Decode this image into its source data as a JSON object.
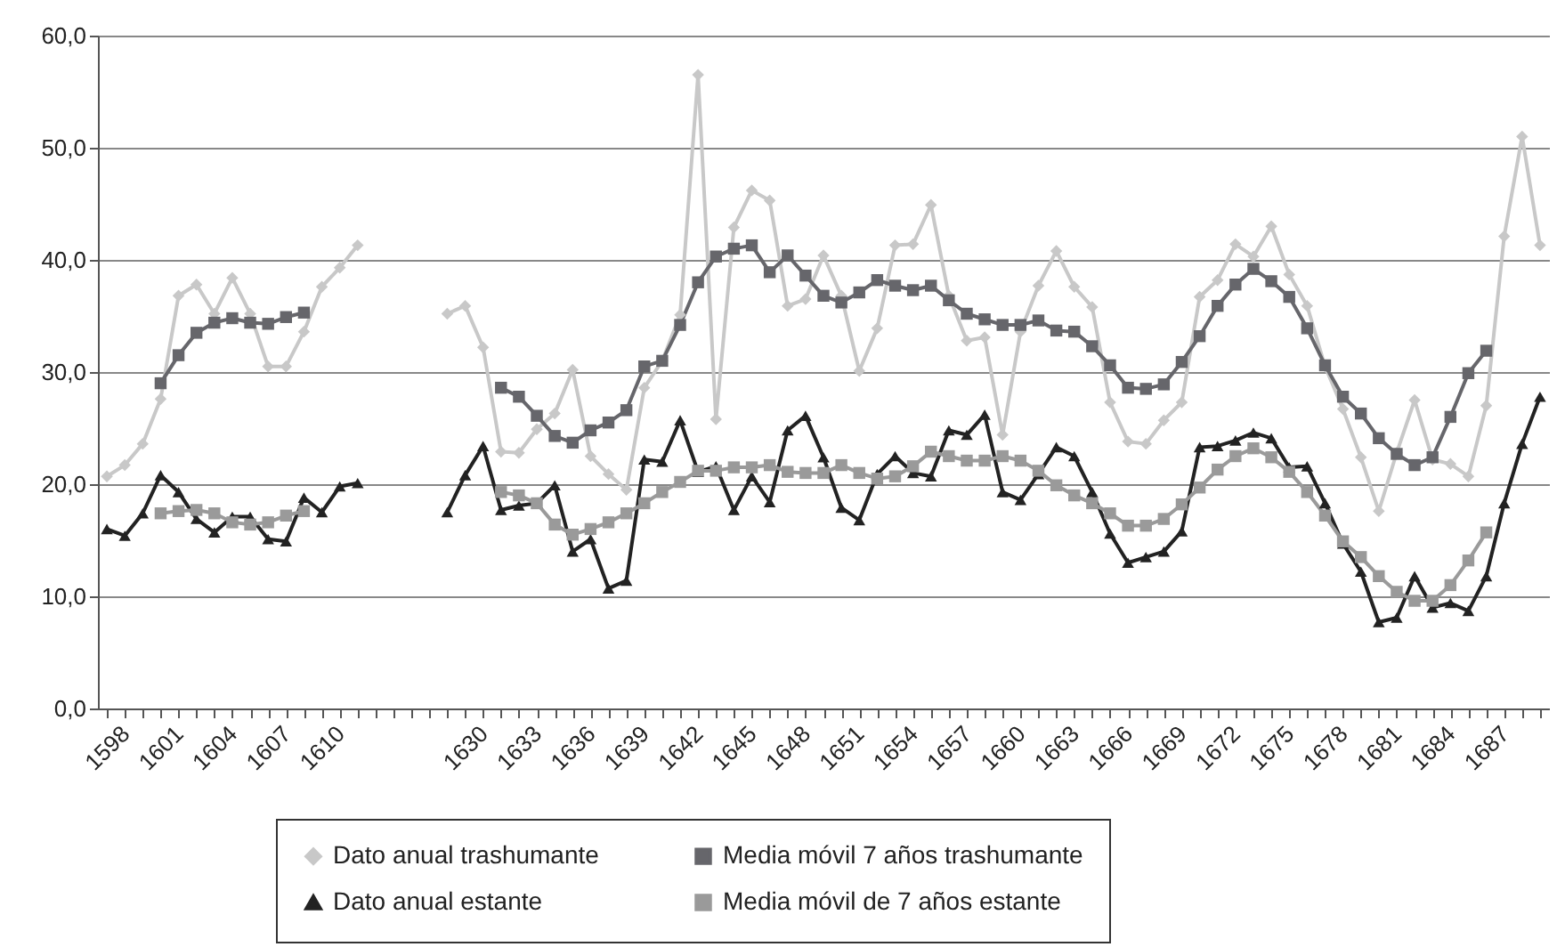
{
  "chart_data": {
    "type": "line",
    "categories": [
      "1598",
      null,
      null,
      "1601",
      null,
      null,
      "1604",
      null,
      null,
      "1607",
      null,
      null,
      "1610",
      null,
      null,
      null,
      null,
      null,
      null,
      null,
      "1630",
      null,
      null,
      "1633",
      null,
      null,
      "1636",
      null,
      null,
      "1639",
      null,
      null,
      "1642",
      null,
      null,
      "1645",
      null,
      null,
      "1648",
      null,
      null,
      "1651",
      null,
      null,
      "1654",
      null,
      null,
      "1657",
      null,
      null,
      "1660",
      null,
      null,
      "1663",
      null,
      null,
      "1666",
      null,
      null,
      "1669",
      null,
      null,
      "1672",
      null,
      null,
      "1675",
      null,
      null,
      "1678",
      null,
      null,
      "1681",
      null,
      null,
      "1684",
      null,
      null,
      "1687",
      null,
      null,
      null
    ],
    "ylim": [
      0,
      60
    ],
    "yticks": [
      {
        "value": 0,
        "label": "0,0"
      },
      {
        "value": 10,
        "label": "10,0"
      },
      {
        "value": 20,
        "label": "20,0"
      },
      {
        "value": 30,
        "label": "30,0"
      },
      {
        "value": 40,
        "label": "40,0"
      },
      {
        "value": 50,
        "label": "50,0"
      },
      {
        "value": 60,
        "label": "60,0"
      }
    ],
    "grid": "y",
    "legend": "bottom",
    "series": [
      {
        "name": "Dato anual trashumante",
        "color": "#c8c8c8",
        "marker": "diamond",
        "values": [
          20.7,
          21.7,
          23.6,
          27.6,
          36.8,
          37.8,
          35.2,
          38.4,
          35.2,
          30.5,
          30.5,
          33.6,
          37.6,
          39.3,
          41.3,
          null,
          null,
          null,
          null,
          35.2,
          35.9,
          32.2,
          22.9,
          22.8,
          24.9,
          26.3,
          30.2,
          22.5,
          20.9,
          19.5,
          28.6,
          31.0,
          35.1,
          56.5,
          25.8,
          42.9,
          46.2,
          45.3,
          35.9,
          36.5,
          40.4,
          36.8,
          30.1,
          33.9,
          41.3,
          41.4,
          44.9,
          36.8,
          32.8,
          33.1,
          24.4,
          33.6,
          37.7,
          40.8,
          37.6,
          35.8,
          27.3,
          23.8,
          23.6,
          25.7,
          27.3,
          36.7,
          38.2,
          41.4,
          40.3,
          43.0,
          38.7,
          35.9,
          30.5,
          26.7,
          22.4,
          17.6,
          22.8,
          27.5,
          22.2,
          21.8,
          20.7,
          27.0,
          42.1,
          51.0,
          41.3
        ]
      },
      {
        "name": "Media móvil 7 años trashumante",
        "color": "#66666b",
        "marker": "square",
        "values": [
          null,
          null,
          null,
          29.0,
          31.5,
          33.5,
          34.4,
          34.8,
          34.4,
          34.3,
          34.9,
          35.3,
          null,
          null,
          null,
          null,
          null,
          null,
          null,
          null,
          null,
          null,
          28.6,
          27.8,
          26.1,
          24.3,
          23.7,
          24.8,
          25.5,
          26.6,
          30.5,
          31.0,
          34.2,
          38.0,
          40.3,
          41.0,
          41.3,
          38.9,
          40.4,
          38.6,
          36.8,
          36.2,
          37.1,
          38.2,
          37.7,
          37.3,
          37.7,
          36.4,
          35.2,
          34.7,
          34.2,
          34.2,
          34.6,
          33.7,
          33.6,
          32.3,
          30.6,
          28.6,
          28.5,
          28.9,
          30.9,
          33.2,
          35.9,
          37.8,
          39.2,
          38.1,
          36.7,
          33.9,
          30.6,
          27.8,
          26.3,
          24.1,
          22.7,
          21.7,
          22.4,
          26.0,
          29.9,
          31.9,
          null,
          null,
          null
        ]
      },
      {
        "name": "Dato anual estante",
        "color": "#222222",
        "marker": "triangle",
        "values": [
          16.0,
          15.4,
          17.4,
          20.8,
          19.3,
          16.9,
          15.7,
          17.1,
          17.1,
          15.1,
          14.9,
          18.8,
          17.5,
          19.8,
          20.1,
          null,
          null,
          null,
          null,
          17.5,
          20.8,
          23.4,
          17.7,
          18.1,
          18.3,
          19.9,
          14.0,
          15.1,
          10.7,
          11.4,
          22.2,
          22.0,
          25.7,
          21.1,
          21.6,
          17.7,
          20.7,
          18.4,
          24.8,
          26.1,
          22.4,
          17.9,
          16.8,
          20.9,
          22.5,
          21.0,
          20.7,
          24.8,
          24.4,
          26.2,
          19.3,
          18.6,
          20.9,
          23.3,
          22.5,
          19.3,
          15.6,
          13.0,
          13.5,
          14.0,
          15.8,
          23.3,
          23.4,
          23.9,
          24.6,
          24.1,
          21.5,
          21.6,
          18.3,
          14.7,
          12.2,
          7.7,
          8.1,
          11.8,
          9.0,
          9.4,
          8.7,
          11.8,
          18.3,
          23.6,
          27.8
        ]
      },
      {
        "name": "Media móvil de 7 años estante",
        "color": "#9a9a9a",
        "marker": "square",
        "values": [
          null,
          null,
          null,
          17.4,
          17.6,
          17.7,
          17.4,
          16.6,
          16.4,
          16.6,
          17.2,
          17.6,
          null,
          null,
          null,
          null,
          null,
          null,
          null,
          null,
          null,
          null,
          19.3,
          19.0,
          18.3,
          16.4,
          15.5,
          16.0,
          16.6,
          17.4,
          18.3,
          19.3,
          20.2,
          21.2,
          21.2,
          21.5,
          21.5,
          21.7,
          21.1,
          21.0,
          21.0,
          21.7,
          21.0,
          20.5,
          20.7,
          21.6,
          22.9,
          22.5,
          22.1,
          22.1,
          22.5,
          22.1,
          21.2,
          19.9,
          19.0,
          18.3,
          17.4,
          16.3,
          16.3,
          16.9,
          18.2,
          19.7,
          21.3,
          22.5,
          23.2,
          22.4,
          21.1,
          19.3,
          17.2,
          14.9,
          13.5,
          11.8,
          10.4,
          9.6,
          9.6,
          11.0,
          13.2,
          15.7,
          null,
          null,
          null
        ]
      }
    ]
  }
}
